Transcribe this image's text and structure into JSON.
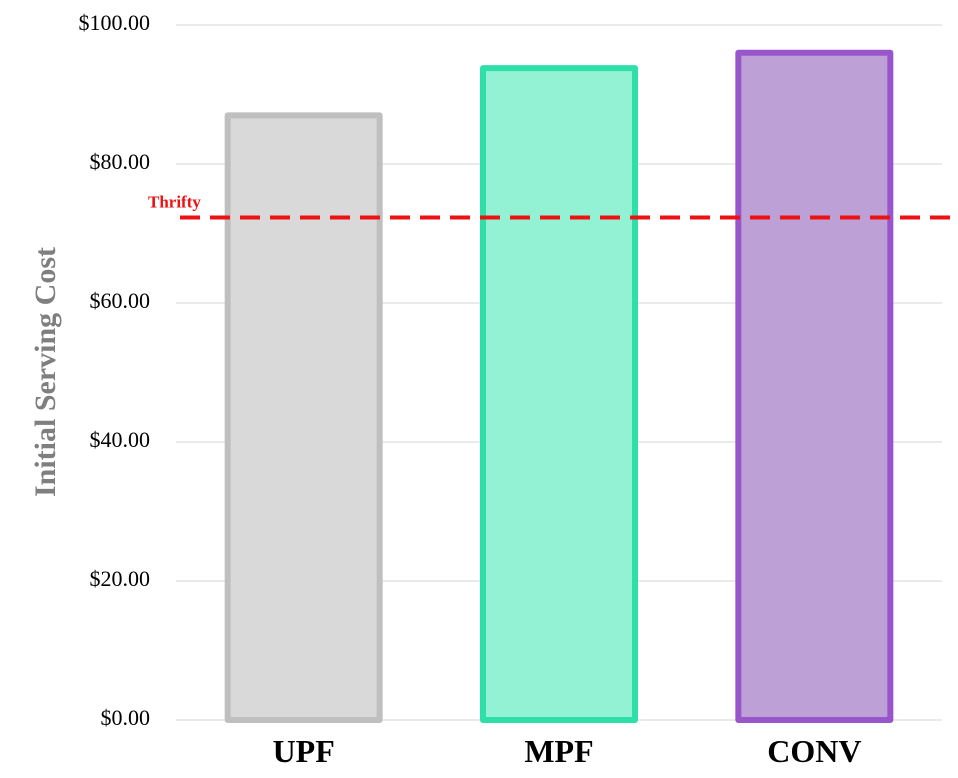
{
  "chart_data": {
    "type": "bar",
    "title": "",
    "xlabel": "",
    "ylabel": "Initial Serving Cost",
    "categories": [
      "UPF",
      "MPF",
      "CONV"
    ],
    "values": [
      87.0,
      93.8,
      96.0
    ],
    "ylim": [
      0,
      100
    ],
    "yticks": [
      0,
      20,
      40,
      60,
      80,
      100
    ],
    "ytick_labels": [
      "$0.00",
      "$20.00",
      "$40.00",
      "$60.00",
      "$80.00",
      "$100.00"
    ],
    "grid": true,
    "legend": "none",
    "bar_colors": [
      {
        "fill": "#d9d9d9",
        "stroke": "#bfbfbf"
      },
      {
        "fill": "#94f2d4",
        "stroke": "#2ee0a8"
      },
      {
        "fill": "#bca0d6",
        "stroke": "#9956cc"
      }
    ],
    "reference_line": {
      "label": "Thrifty",
      "value": 72.3,
      "color": "#ee1111"
    }
  }
}
